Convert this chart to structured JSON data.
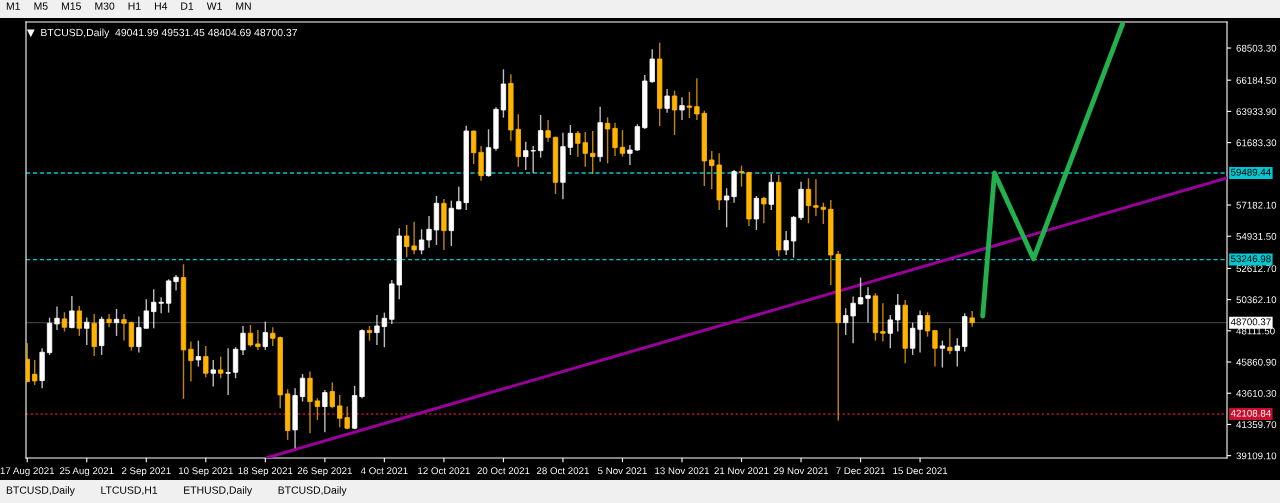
{
  "chart_data": {
    "type": "candlestick",
    "title": "BTCUSD,Daily  49041.99 49531.45 48404.69 48700.37",
    "xlim": [
      "2021-08-16T20:00",
      "2022-01-25T06:00"
    ],
    "xticks": [
      {
        "value": "2021-08-17",
        "label": "17 Aug 2021"
      },
      {
        "value": "2021-08-25",
        "label": "25 Aug 2021"
      },
      {
        "value": "2021-09-02",
        "label": "2 Sep 2021"
      },
      {
        "value": "2021-09-10",
        "label": "10 Sep 2021"
      },
      {
        "value": "2021-09-18",
        "label": "18 Sep 2021"
      },
      {
        "value": "2021-09-26",
        "label": "26 Sep 2021"
      },
      {
        "value": "2021-10-04",
        "label": "4 Oct 2021"
      },
      {
        "value": "2021-10-12",
        "label": "12 Oct 2021"
      },
      {
        "value": "2021-10-20",
        "label": "20 Oct 2021"
      },
      {
        "value": "2021-10-28",
        "label": "28 Oct 2021"
      },
      {
        "value": "2021-11-05",
        "label": "5 Nov 2021"
      },
      {
        "value": "2021-11-13",
        "label": "13 Nov 2021"
      },
      {
        "value": "2021-11-21",
        "label": "21 Nov 2021"
      },
      {
        "value": "2021-11-29",
        "label": "29 Nov 2021"
      },
      {
        "value": "2021-12-07",
        "label": "7 Dec 2021"
      },
      {
        "value": "2021-12-15",
        "label": "15 Dec 2021"
      }
    ],
    "ylim": [
      38940,
      70380
    ],
    "yticks": [
      {
        "value": 39109.1,
        "label": "39109.10"
      },
      {
        "value": 41359.7,
        "label": "41359.70"
      },
      {
        "value": 43610.3,
        "label": "43610.30"
      },
      {
        "value": 45860.9,
        "label": "45860.90"
      },
      {
        "value": 48111.5,
        "label": "48111.50"
      },
      {
        "value": 50362.1,
        "label": "50362.10"
      },
      {
        "value": 52612.7,
        "label": "52612.70"
      },
      {
        "value": 54931.5,
        "label": "54931.50"
      },
      {
        "value": 57182.1,
        "label": "57182.10"
      },
      {
        "value": 61683.3,
        "label": "61683.30"
      },
      {
        "value": 63933.9,
        "label": "63933.90"
      },
      {
        "value": 66184.5,
        "label": "66184.50"
      },
      {
        "value": 68503.3,
        "label": "68503.30"
      }
    ],
    "grid": false,
    "series": [
      {
        "x": [
          "2021-08-17",
          "2021-08-18",
          "2021-08-19",
          "2021-08-20",
          "2021-08-21",
          "2021-08-22",
          "2021-08-23",
          "2021-08-24",
          "2021-08-25",
          "2021-08-26",
          "2021-08-27",
          "2021-08-28",
          "2021-08-29",
          "2021-08-30",
          "2021-08-31",
          "2021-09-01",
          "2021-09-02",
          "2021-09-03",
          "2021-09-04",
          "2021-09-05",
          "2021-09-06",
          "2021-09-07",
          "2021-09-08",
          "2021-09-09",
          "2021-09-10",
          "2021-09-11",
          "2021-09-12",
          "2021-09-13",
          "2021-09-14",
          "2021-09-15",
          "2021-09-16",
          "2021-09-17",
          "2021-09-18",
          "2021-09-19",
          "2021-09-20",
          "2021-09-21",
          "2021-09-22",
          "2021-09-23",
          "2021-09-24",
          "2021-09-25",
          "2021-09-26",
          "2021-09-27",
          "2021-09-28",
          "2021-09-29",
          "2021-09-30",
          "2021-10-01",
          "2021-10-02",
          "2021-10-03",
          "2021-10-04",
          "2021-10-05",
          "2021-10-06",
          "2021-10-07",
          "2021-10-08",
          "2021-10-09",
          "2021-10-10",
          "2021-10-11",
          "2021-10-12",
          "2021-10-13",
          "2021-10-14",
          "2021-10-15",
          "2021-10-16",
          "2021-10-17",
          "2021-10-18",
          "2021-10-19",
          "2021-10-20",
          "2021-10-21",
          "2021-10-22",
          "2021-10-23",
          "2021-10-24",
          "2021-10-25",
          "2021-10-26",
          "2021-10-27",
          "2021-10-28",
          "2021-10-29",
          "2021-10-30",
          "2021-10-31",
          "2021-11-01",
          "2021-11-02",
          "2021-11-03",
          "2021-11-04",
          "2021-11-05",
          "2021-11-06",
          "2021-11-07",
          "2021-11-08",
          "2021-11-09",
          "2021-11-10",
          "2021-11-11",
          "2021-11-12",
          "2021-11-13",
          "2021-11-14",
          "2021-11-15",
          "2021-11-16",
          "2021-11-17",
          "2021-11-18",
          "2021-11-19",
          "2021-11-20",
          "2021-11-21",
          "2021-11-22",
          "2021-11-23",
          "2021-11-24",
          "2021-11-25",
          "2021-11-26",
          "2021-11-27",
          "2021-11-28",
          "2021-11-29",
          "2021-11-30",
          "2021-12-01",
          "2021-12-02",
          "2021-12-03",
          "2021-12-04",
          "2021-12-05",
          "2021-12-06",
          "2021-12-07",
          "2021-12-08",
          "2021-12-09",
          "2021-12-10",
          "2021-12-11",
          "2021-12-12",
          "2021-12-13",
          "2021-12-14",
          "2021-12-15",
          "2021-12-16",
          "2021-12-17",
          "2021-12-18",
          "2021-12-19",
          "2021-12-20",
          "2021-12-21",
          "2021-12-22"
        ],
        "ohlc": [
          [
            46060,
            47213,
            44400,
            44450
          ],
          [
            44979,
            46010,
            44210,
            44498
          ],
          [
            44520,
            46853,
            43970,
            46565
          ],
          [
            46540,
            49064,
            46373,
            48656
          ],
          [
            48608,
            49857,
            48175,
            49016
          ],
          [
            48968,
            49448,
            48055,
            48367
          ],
          [
            48343,
            50626,
            48295,
            49545
          ],
          [
            49545,
            49905,
            47743,
            48295
          ],
          [
            48295,
            49064,
            47093,
            48728
          ],
          [
            48656,
            49328,
            46300,
            46973
          ],
          [
            47045,
            49136,
            46373,
            48944
          ],
          [
            48944,
            49328,
            48367,
            48704
          ],
          [
            48704,
            49689,
            47743,
            48944
          ],
          [
            48920,
            49328,
            47406,
            48656
          ],
          [
            48704,
            48776,
            46685,
            46973
          ],
          [
            46973,
            49136,
            46540,
            48343
          ],
          [
            48295,
            50386,
            48295,
            49545
          ],
          [
            49497,
            51107,
            48295,
            50170
          ],
          [
            50098,
            50530,
            49377,
            50170
          ],
          [
            50098,
            51828,
            49425,
            51708
          ],
          [
            51660,
            52141,
            51011,
            51972
          ],
          [
            51948,
            52910,
            43202,
            46733
          ],
          [
            46781,
            47333,
            44450,
            45964
          ],
          [
            46012,
            47406,
            45531,
            46253
          ],
          [
            46253,
            47021,
            44763,
            45051
          ],
          [
            45051,
            46012,
            44090,
            45291
          ],
          [
            45291,
            46253,
            44690,
            45051
          ],
          [
            45051,
            46853,
            43490,
            45099
          ],
          [
            45123,
            46925,
            44691,
            46781
          ],
          [
            46733,
            48464,
            46373,
            47935
          ],
          [
            47935,
            48536,
            46973,
            47093
          ],
          [
            47165,
            48175,
            46733,
            46973
          ],
          [
            46973,
            48776,
            46733,
            47983
          ],
          [
            47935,
            48367,
            47021,
            47574
          ],
          [
            47622,
            47694,
            42529,
            43490
          ],
          [
            43562,
            43899,
            40245,
            40918
          ],
          [
            40966,
            43971,
            39645,
            43442
          ],
          [
            43370,
            45002,
            43010,
            44691
          ],
          [
            44691,
            45171,
            40726,
            43010
          ],
          [
            43058,
            43250,
            41687,
            42649
          ],
          [
            42649,
            43851,
            40798,
            43658
          ],
          [
            43730,
            44379,
            42529,
            42649
          ],
          [
            42697,
            43490,
            41158,
            41807
          ],
          [
            41855,
            42649,
            41014,
            41086
          ],
          [
            41086,
            44138,
            41014,
            43442
          ],
          [
            43370,
            48223,
            43250,
            48127
          ],
          [
            48127,
            48464,
            47406,
            47983
          ],
          [
            47983,
            49256,
            47093,
            48464
          ],
          [
            48416,
            49425,
            46925,
            49016
          ],
          [
            48944,
            51780,
            48608,
            51492
          ],
          [
            51419,
            55504,
            50386,
            54951
          ],
          [
            54951,
            55744,
            53414,
            54183
          ],
          [
            54231,
            55985,
            53630,
            53942
          ],
          [
            53942,
            55432,
            53630,
            54663
          ],
          [
            54663,
            56393,
            54110,
            55432
          ],
          [
            55384,
            57834,
            54303,
            57306
          ],
          [
            57306,
            57618,
            53942,
            55336
          ],
          [
            55336,
            57498,
            54231,
            56946
          ],
          [
            56898,
            58508,
            56874,
            57426
          ],
          [
            57354,
            62905,
            56826,
            62521
          ],
          [
            62521,
            62545,
            60142,
            60959
          ],
          [
            60983,
            61440,
            58941,
            59301
          ],
          [
            59301,
            62641,
            59229,
            61320
          ],
          [
            61272,
            64227,
            61103,
            64083
          ],
          [
            64035,
            66966,
            63483,
            65909
          ],
          [
            65957,
            66606,
            61824,
            62593
          ],
          [
            62641,
            63723,
            59950,
            60671
          ],
          [
            60671,
            61752,
            59710,
            61103
          ],
          [
            61080,
            61440,
            59518,
            61103
          ],
          [
            61103,
            63675,
            60599,
            62545
          ],
          [
            62545,
            63314,
            61752,
            62064
          ],
          [
            62064,
            62112,
            57979,
            58820
          ],
          [
            58820,
            62401,
            57594,
            61392
          ],
          [
            61344,
            62953,
            60791,
            62353
          ],
          [
            62353,
            62521,
            60671,
            61632
          ],
          [
            61680,
            62449,
            59950,
            60911
          ],
          [
            60911,
            62521,
            59422,
            60671
          ],
          [
            60671,
            64275,
            60311,
            63122
          ],
          [
            63074,
            63506,
            60190,
            62665
          ],
          [
            62713,
            63122,
            60719,
            61320
          ],
          [
            61344,
            62593,
            60671,
            60911
          ],
          [
            60911,
            61512,
            60070,
            61152
          ],
          [
            61152,
            63002,
            61080,
            62833
          ],
          [
            62761,
            66558,
            62665,
            66125
          ],
          [
            66077,
            68408,
            66005,
            67711
          ],
          [
            67711,
            68889,
            62881,
            64155
          ],
          [
            64155,
            65548,
            63843,
            65044
          ],
          [
            65044,
            65429,
            62233,
            64035
          ],
          [
            64035,
            64948,
            63314,
            64347
          ],
          [
            64323,
            65333,
            63458,
            64227
          ],
          [
            64275,
            66317,
            63314,
            63747
          ],
          [
            63795,
            63987,
            58556,
            60359
          ],
          [
            60431,
            61080,
            58316,
            60022
          ],
          [
            60070,
            60911,
            56826,
            57546
          ],
          [
            57546,
            58388,
            55576,
            57835
          ],
          [
            57787,
            59710,
            57354,
            59590
          ],
          [
            59590,
            60022,
            58508,
            59518
          ],
          [
            59518,
            59590,
            55672,
            56177
          ],
          [
            56177,
            57835,
            55384,
            57667
          ],
          [
            57667,
            57787,
            55865,
            57258
          ],
          [
            57234,
            59422,
            56826,
            58820
          ],
          [
            58820,
            59349,
            53462,
            53942
          ],
          [
            53942,
            55312,
            53582,
            54615
          ],
          [
            54591,
            56393,
            53390,
            56297
          ],
          [
            56273,
            58869,
            56105,
            58316
          ],
          [
            58316,
            59109,
            55865,
            57138
          ],
          [
            57138,
            59036,
            56393,
            57018
          ],
          [
            57018,
            57354,
            55817,
            56874
          ],
          [
            56874,
            57546,
            51419,
            53582
          ],
          [
            53630,
            53870,
            41639,
            48704
          ],
          [
            48704,
            49737,
            47814,
            49208
          ],
          [
            49184,
            50578,
            47213,
            50098
          ],
          [
            50050,
            51948,
            50026,
            50506
          ],
          [
            50458,
            51251,
            48704,
            50650
          ],
          [
            50626,
            50819,
            47406,
            47983
          ],
          [
            48055,
            50098,
            47334,
            47935
          ],
          [
            47935,
            49256,
            46853,
            48896
          ],
          [
            48896,
            50771,
            48055,
            49953
          ],
          [
            49953,
            50338,
            45772,
            46853
          ],
          [
            46853,
            48704,
            46373,
            48295
          ],
          [
            48223,
            49569,
            46541,
            49208
          ],
          [
            49208,
            49449,
            47694,
            48103
          ],
          [
            48127,
            48175,
            45531,
            46853
          ],
          [
            46853,
            47406,
            45459,
            47021
          ],
          [
            46925,
            48295,
            46445,
            46685
          ],
          [
            46685,
            47574,
            45531,
            47021
          ],
          [
            46974,
            49377,
            46613,
            49137
          ],
          [
            49041.99,
            49531.45,
            48404.69,
            48700.37
          ]
        ],
        "colors": [
          "#ffb400",
          "#ffb400",
          "#ffffff",
          "#ffffff",
          "#ffffff",
          "#ffb400",
          "#ffffff",
          "#ffb400",
          "#ffffff",
          "#ffb400",
          "#ffffff",
          "#ffb400",
          "#ffffff",
          "#ffb400",
          "#ffb400",
          "#ffffff",
          "#ffffff",
          "#ffffff",
          "#ffffff",
          "#ffffff",
          "#ffffff",
          "#ffb400",
          "#ffb400",
          "#ffffff",
          "#ffb400",
          "#ffffff",
          "#ffb400",
          "#ffffff",
          "#ffffff",
          "#ffffff",
          "#ffb400",
          "#ffb400",
          "#ffffff",
          "#ffb400",
          "#ffb400",
          "#ffb400",
          "#ffffff",
          "#ffffff",
          "#ffb400",
          "#ffb400",
          "#ffffff",
          "#ffb400",
          "#ffb400",
          "#ffb400",
          "#ffffff",
          "#ffffff",
          "#ffb400",
          "#ffffff",
          "#ffffff",
          "#ffffff",
          "#ffffff",
          "#ffb400",
          "#ffb400",
          "#ffffff",
          "#ffffff",
          "#ffffff",
          "#ffb400",
          "#ffffff",
          "#ffffff",
          "#ffffff",
          "#ffb400",
          "#ffb400",
          "#ffffff",
          "#ffffff",
          "#ffffff",
          "#ffb400",
          "#ffb400",
          "#ffffff",
          "#ffffff",
          "#ffffff",
          "#ffb400",
          "#ffb400",
          "#ffffff",
          "#ffffff",
          "#ffb400",
          "#ffb400",
          "#ffb400",
          "#ffffff",
          "#ffb400",
          "#ffb400",
          "#ffb400",
          "#ffffff",
          "#ffffff",
          "#ffffff",
          "#ffffff",
          "#ffb400",
          "#ffffff",
          "#ffb400",
          "#ffffff",
          "#ffb400",
          "#ffb400",
          "#ffb400",
          "#ffb400",
          "#ffb400",
          "#ffffff",
          "#ffffff",
          "#ffb400",
          "#ffb400",
          "#ffffff",
          "#ffb400",
          "#ffffff",
          "#ffb400",
          "#ffffff",
          "#ffffff",
          "#ffffff",
          "#ffb400",
          "#ffb400",
          "#ffb400",
          "#ffb400",
          "#ffb400",
          "#ffffff",
          "#ffffff",
          "#ffffff",
          "#ffffff",
          "#ffb400",
          "#ffb400",
          "#ffffff",
          "#ffffff",
          "#ffb400",
          "#ffffff",
          "#ffffff",
          "#ffb400",
          "#ffb400",
          "#ffffff",
          "#ffb400",
          "#ffffff",
          "#ffffff",
          "#ffb400"
        ]
      },
      {
        "type": "line",
        "color": "#990099",
        "x": [
          "2021-09-18T05:00",
          "2022-01-25T06:00"
        ],
        "values": [
          38960,
          59130
        ]
      },
      {
        "type": "line",
        "color": "#22b14c",
        "x": [
          "2021-12-23T10:00",
          "2021-12-25T00:00",
          "2021-12-30T06:00",
          "2022-01-11T05:00"
        ],
        "values": [
          49180,
          59500,
          53300,
          70230
        ]
      }
    ],
    "ref_lines": [
      {
        "axis": "y",
        "value": 59489.44,
        "label": "59489.44",
        "color": "#00c8d2",
        "line_style": "dashed"
      },
      {
        "axis": "y",
        "value": 53246.98,
        "label": "53246.98",
        "color": "#00c8d2",
        "line_style": "dashed"
      },
      {
        "axis": "y",
        "value": 48700.37,
        "label": "48700.37",
        "color": "#3c3c3c",
        "line_style": "solid"
      },
      {
        "axis": "y",
        "value": 42108.84,
        "label": "42108.84",
        "color": "#c8102e",
        "line_style": "dotted"
      }
    ],
    "annotations": [
      "M1",
      "M5",
      "M15",
      "M30",
      "H1",
      "H4",
      "D1",
      "W1",
      "MN",
      "BTCUSD,Daily",
      "LTCUSD,H1",
      "ETHUSD,Daily",
      "BTCUSD,Daily"
    ]
  }
}
